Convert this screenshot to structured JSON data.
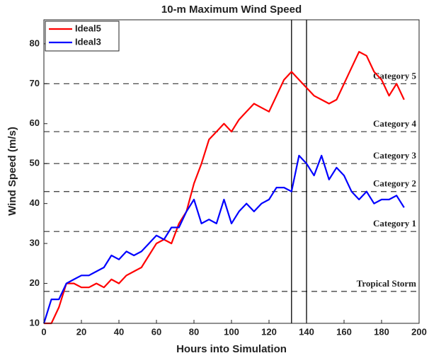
{
  "chart_data": {
    "type": "line",
    "title": "10-m Maximum Wind Speed",
    "x_label": "Hours into Simulation",
    "y_label": "Wind Speed (m/s)",
    "x": [
      0,
      4,
      8,
      12,
      16,
      20,
      24,
      28,
      32,
      36,
      40,
      44,
      48,
      52,
      56,
      60,
      64,
      68,
      72,
      76,
      80,
      84,
      88,
      92,
      96,
      100,
      104,
      108,
      112,
      116,
      120,
      124,
      128,
      132,
      136,
      140,
      144,
      148,
      152,
      156,
      160,
      164,
      168,
      172,
      176,
      180,
      184,
      188,
      192
    ],
    "series": [
      {
        "name": "Ideal5",
        "color": "#ff0000",
        "values": [
          10,
          10,
          14,
          20,
          20,
          19,
          19,
          20,
          19,
          21,
          20,
          22,
          23,
          24,
          27,
          30,
          31,
          30,
          35,
          38,
          45,
          50,
          56,
          58,
          60,
          58,
          61,
          63,
          65,
          64,
          63,
          67,
          71,
          73,
          71,
          69,
          67,
          66,
          65,
          66,
          70,
          74,
          78,
          77,
          73,
          71,
          67,
          70,
          66
        ]
      },
      {
        "name": "Ideal3",
        "color": "#0000ff",
        "values": [
          10,
          16,
          16,
          20,
          21,
          22,
          22,
          23,
          24,
          27,
          26,
          28,
          27,
          28,
          30,
          32,
          31,
          34,
          34,
          38,
          41,
          35,
          36,
          35,
          41,
          35,
          38,
          40,
          38,
          40,
          41,
          44,
          44,
          43,
          52,
          50,
          47,
          52,
          46,
          49,
          47,
          43,
          41,
          43,
          40,
          41,
          41,
          42,
          39
        ]
      }
    ],
    "xlim": [
      0,
      200
    ],
    "ylim": [
      10,
      86
    ],
    "xticks": [
      0,
      20,
      40,
      60,
      80,
      100,
      120,
      140,
      160,
      180,
      200
    ],
    "yticks": [
      10,
      20,
      30,
      40,
      50,
      60,
      70,
      80
    ],
    "reference_lines": [
      {
        "value": 18,
        "label": "Tropical Storm"
      },
      {
        "value": 33,
        "label": "Category 1"
      },
      {
        "value": 43,
        "label": "Category 2"
      },
      {
        "value": 50,
        "label": "Category 3"
      },
      {
        "value": 58,
        "label": "Category 4"
      },
      {
        "value": 70,
        "label": "Category 5"
      }
    ],
    "vertical_lines": [
      132,
      140
    ],
    "legend": "upper left"
  }
}
